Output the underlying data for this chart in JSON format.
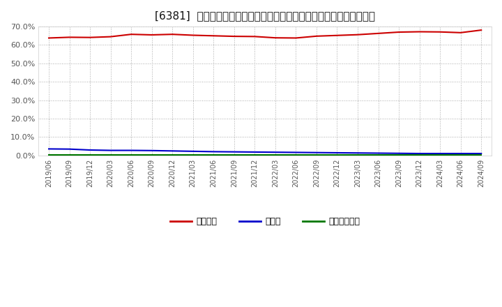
{
  "title": "[6381]  自己資本、のれん、繰延税金資産の総資産に対する比率の推移",
  "title_fontsize": 11,
  "background_color": "#ffffff",
  "grid_color": "#aaaaaa",
  "x_labels": [
    "2019/06",
    "2019/09",
    "2019/12",
    "2020/03",
    "2020/06",
    "2020/09",
    "2020/12",
    "2021/03",
    "2021/06",
    "2021/09",
    "2021/12",
    "2022/03",
    "2022/06",
    "2022/09",
    "2022/12",
    "2023/03",
    "2023/06",
    "2023/09",
    "2023/12",
    "2024/03",
    "2024/06",
    "2024/09"
  ],
  "jikoshihon": [
    63.8,
    64.2,
    64.1,
    64.5,
    65.8,
    65.5,
    65.8,
    65.3,
    65.0,
    64.7,
    64.6,
    63.9,
    63.8,
    64.8,
    65.2,
    65.6,
    66.3,
    67.0,
    67.2,
    67.1,
    66.7,
    68.1
  ],
  "noren": [
    3.5,
    3.4,
    2.9,
    2.7,
    2.7,
    2.6,
    2.4,
    2.2,
    2.0,
    1.9,
    1.8,
    1.7,
    1.6,
    1.5,
    1.4,
    1.3,
    1.2,
    1.1,
    1.0,
    1.0,
    1.0,
    1.0
  ],
  "kurinobe": [
    0.2,
    0.2,
    0.2,
    0.2,
    0.2,
    0.2,
    0.2,
    0.2,
    0.2,
    0.2,
    0.2,
    0.2,
    0.2,
    0.2,
    0.2,
    0.2,
    0.2,
    0.2,
    0.2,
    0.2,
    0.2,
    0.2
  ],
  "jikoshihon_color": "#cc0000",
  "noren_color": "#0000cc",
  "kurinobe_color": "#007700",
  "legend_labels": [
    "自己資本",
    "のれん",
    "繰延税金資産"
  ],
  "ylim": [
    0.0,
    70.0
  ],
  "yticks": [
    0.0,
    10.0,
    20.0,
    30.0,
    40.0,
    50.0,
    60.0,
    70.0
  ]
}
